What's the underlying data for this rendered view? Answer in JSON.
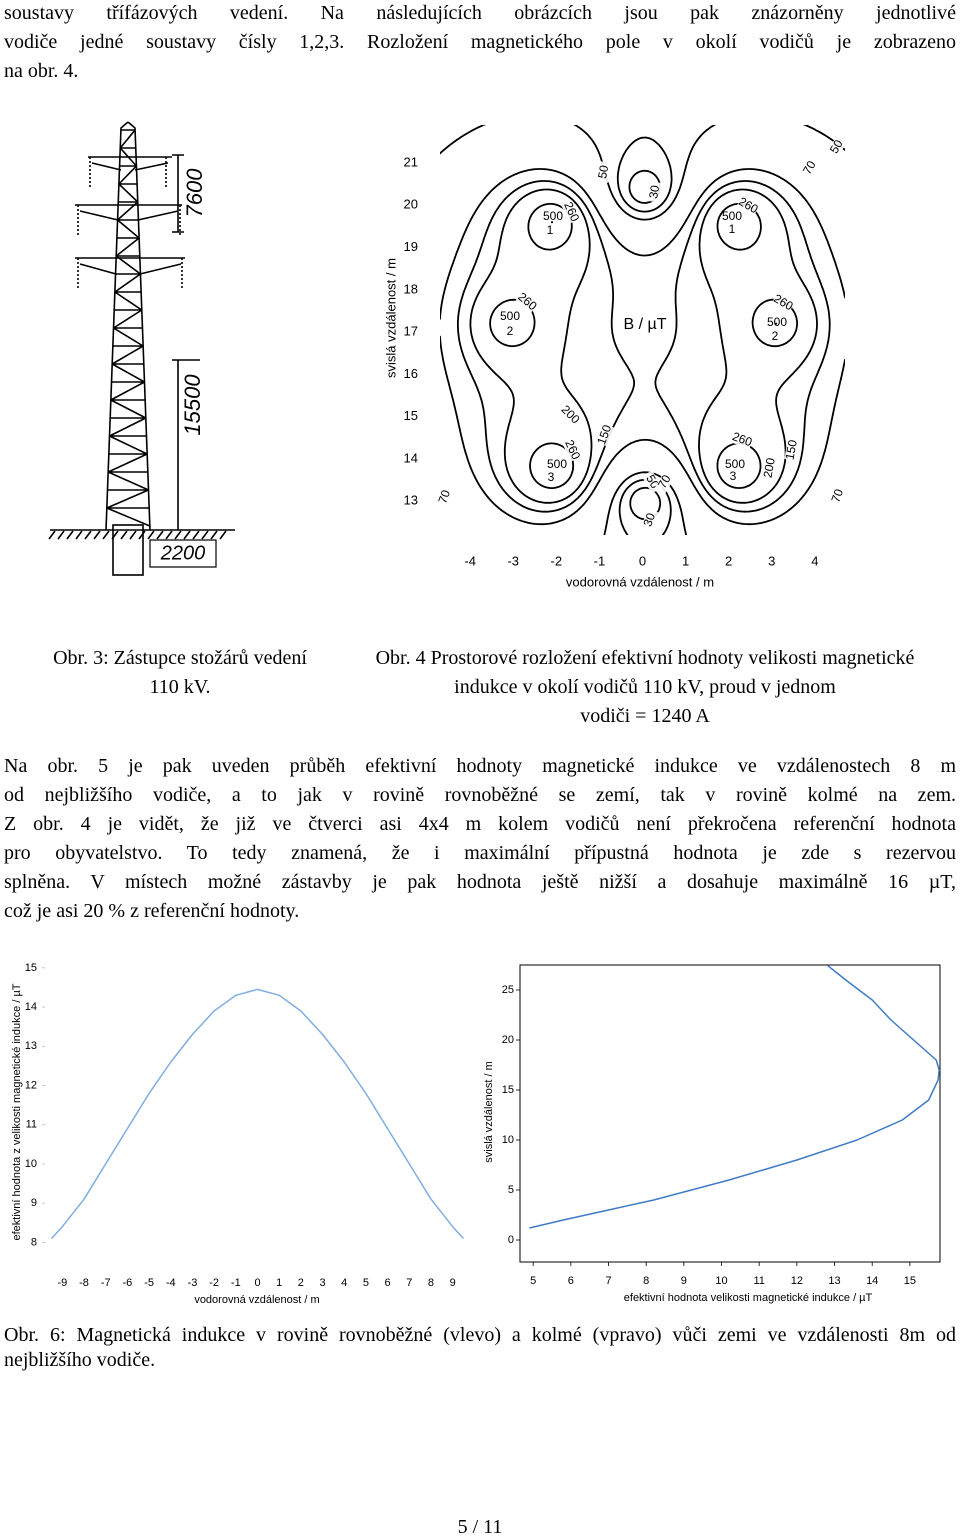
{
  "paragraphs": [
    [
      "soustavy třífázových vedení. Na následujících obrázcích jsou pak znázorněny jednotlivé",
      "vodiče jedné soustavy čísly 1,2,3. Rozložení magnetického pole v okolí vodičů je zobrazeno",
      "na obr. 4."
    ],
    [
      "Na obr. 5 je pak uveden průběh efektivní hodnoty magnetické indukce ve vzdálenostech 8 m",
      "od nejbližšího vodiče, a to jak v rovině rovnoběžné se zemí, tak v rovině kolmé na zem.",
      "Z obr. 4 je vidět, že již ve čtverci asi 4x4 m kolem vodičů není překročena referenční hodnota",
      "pro obyvatelstvo. To tedy znamená, že i maximální přípustná hodnota je zde s rezervou",
      "splněna. V místech možné zástavby je pak hodnota ještě nižší a dosahuje maximálně 16 µT,",
      "což je asi 20 % z referenční hodnoty."
    ]
  ],
  "figure3": {
    "dimensions": [
      7600,
      15500,
      2200
    ],
    "caption": [
      "Obr. 3: Zástupce stožárů vedení",
      "110 kV."
    ]
  },
  "figure4_caption": [
    "Obr. 4 Prostorové rozložení efektivní hodnoty velikosti magnetické",
    "indukce v okolí vodičů 110 kV, proud v jednom",
    "vodiči = 1240 A"
  ],
  "chart_data": [
    {
      "type": "contour",
      "title": "B / µT",
      "xlabel": "vodorovná vzdálenost / m",
      "ylabel": "svislá vzdálenost / m",
      "xlim": [
        -4.7,
        4.7
      ],
      "ylim": [
        12.2,
        21.9
      ],
      "xticks": [
        -4,
        -3,
        -2,
        -1,
        0,
        1,
        2,
        3,
        4
      ],
      "yticks": [
        13,
        14,
        15,
        16,
        17,
        18,
        19,
        20,
        21
      ],
      "contour_labels": [
        50,
        70,
        50,
        30,
        260,
        500,
        260,
        500,
        260,
        500,
        260,
        500,
        200,
        150,
        260,
        500,
        260,
        150,
        200,
        500,
        50,
        70,
        70,
        70,
        30
      ],
      "conductor_labels": [
        1,
        1,
        2,
        2,
        3,
        3
      ]
    },
    {
      "type": "line",
      "xlabel": "vodorovná vzdálenost / m",
      "ylabel": "efektivní hodnota z velikosti magnetické indukce / µT",
      "x": [
        -9.5,
        -9,
        -8,
        -7,
        -6,
        -5,
        -4,
        -3,
        -2,
        -1,
        0,
        1,
        2,
        3,
        4,
        5,
        6,
        7,
        8,
        9,
        9.5
      ],
      "values": [
        8.1,
        8.4,
        9.1,
        10.0,
        10.9,
        11.8,
        12.6,
        13.3,
        13.9,
        14.3,
        14.45,
        14.3,
        13.9,
        13.3,
        12.6,
        11.8,
        10.9,
        10.0,
        9.1,
        8.4,
        8.1
      ],
      "color": "#7eaee0",
      "xlim": [
        -9.8,
        9.8
      ],
      "ylim": [
        7.5,
        15.2
      ],
      "xticks": [
        -9,
        -8,
        -7,
        -6,
        -5,
        -4,
        -3,
        -2,
        -1,
        0,
        1,
        2,
        3,
        4,
        5,
        6,
        7,
        8,
        9
      ],
      "yticks": [
        8,
        9,
        10,
        11,
        12,
        13,
        14,
        15
      ]
    },
    {
      "type": "line",
      "orientation": "horizontal",
      "xlabel": "efektivní hodnota velikosti magnetické indukce / µT",
      "ylabel": "svislá vzdálenost / m",
      "y": [
        1.2,
        2,
        3,
        4,
        5,
        6,
        7,
        8,
        9,
        10,
        12,
        14,
        16,
        17,
        18,
        20,
        22,
        24,
        26,
        27.5
      ],
      "values": [
        4.9,
        5.8,
        7.0,
        8.2,
        9.2,
        10.2,
        11.1,
        12.0,
        12.8,
        13.6,
        14.8,
        15.5,
        15.75,
        15.78,
        15.7,
        15.1,
        14.5,
        14.0,
        13.3,
        12.8
      ],
      "color": "#3f7bc6",
      "xlim": [
        4.65,
        15.8
      ],
      "ylim": [
        -2.2,
        27.5
      ],
      "xticks": [
        5,
        6,
        7,
        8,
        9,
        10,
        11,
        12,
        13,
        14,
        15
      ],
      "yticks": [
        0,
        5,
        10,
        15,
        20,
        25
      ]
    }
  ],
  "figure6_caption": [
    "Obr. 6: Magnetická indukce v rovině rovnoběžné (vlevo) a kolmé (vpravo) vůči zemi ve vzdálenosti 8m od",
    "nejbližšího vodiče."
  ],
  "page_number": "5 / 11"
}
